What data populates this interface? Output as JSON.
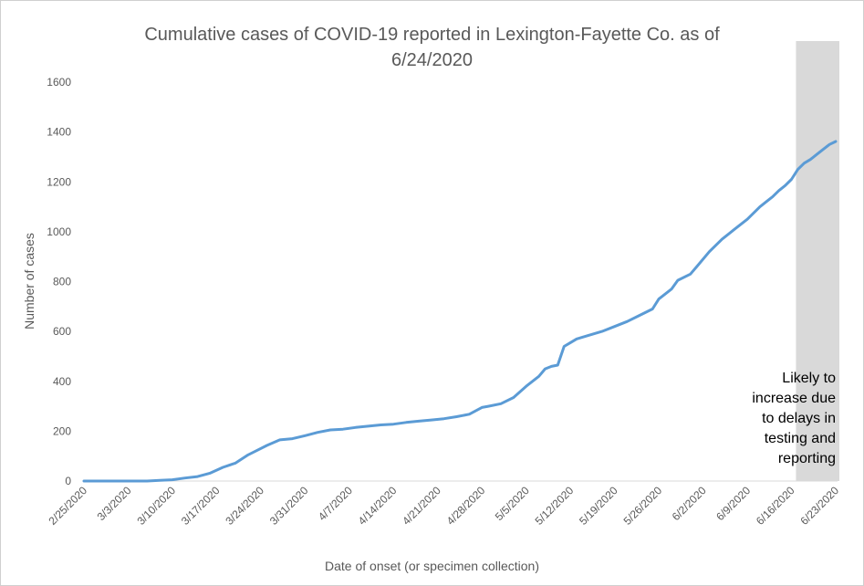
{
  "chart_data": {
    "type": "line",
    "title_line1": "Cumulative cases of COVID-19 reported in Lexington-Fayette Co.  as of",
    "title_line2": "6/24/2020",
    "xlabel": "Date of onset (or specimen collection)",
    "ylabel": "Number of cases",
    "ylim": [
      0,
      1600
    ],
    "yticks": [
      0,
      200,
      400,
      600,
      800,
      1000,
      1200,
      1400,
      1600
    ],
    "xlim": [
      "2/25/2020",
      "6/23/2020"
    ],
    "xticks": [
      "2/25/2020",
      "3/3/2020",
      "3/10/2020",
      "3/17/2020",
      "3/24/2020",
      "3/31/2020",
      "4/7/2020",
      "4/14/2020",
      "4/21/2020",
      "4/28/2020",
      "5/5/2020",
      "5/12/2020",
      "5/19/2020",
      "5/26/2020",
      "6/2/2020",
      "6/9/2020",
      "6/16/2020",
      "6/23/2020"
    ],
    "line_color": "#5B9BD5",
    "shaded_region": {
      "start": "6/17/2020",
      "end": "6/23/2020",
      "color": "#D9D9D9"
    },
    "annotation": "Likely to increase due to delays in testing and reporting",
    "annotation_lines": [
      "Likely to",
      "increase due",
      "to delays in",
      "testing and",
      "reporting"
    ],
    "grid": false,
    "series": [
      {
        "x": [
          "2/25/2020",
          "3/1/2020",
          "3/6/2020",
          "3/8/2020",
          "3/10/2020",
          "3/12/2020",
          "3/14/2020",
          "3/16/2020",
          "3/18/2020",
          "3/20/2020",
          "3/22/2020",
          "3/23/2020",
          "3/25/2020",
          "3/27/2020",
          "3/29/2020",
          "3/31/2020",
          "4/2/2020",
          "4/4/2020",
          "4/6/2020",
          "4/8/2020",
          "4/10/2020",
          "4/12/2020",
          "4/14/2020",
          "4/16/2020",
          "4/18/2020",
          "4/20/2020",
          "4/22/2020",
          "4/24/2020",
          "4/26/2020",
          "4/28/2020",
          "4/29/2020",
          "5/1/2020",
          "5/3/2020",
          "5/5/2020",
          "5/7/2020",
          "5/8/2020",
          "5/9/2020",
          "5/10/2020",
          "5/11/2020",
          "5/12/2020",
          "5/13/2020",
          "5/15/2020",
          "5/17/2020",
          "5/19/2020",
          "5/21/2020",
          "5/23/2020",
          "5/25/2020",
          "5/26/2020",
          "5/27/2020",
          "5/28/2020",
          "5/29/2020",
          "5/31/2020",
          "6/1/2020",
          "6/3/2020",
          "6/5/2020",
          "6/7/2020",
          "6/9/2020",
          "6/11/2020",
          "6/12/2020",
          "6/13/2020",
          "6/14/2020",
          "6/15/2020",
          "6/16/2020",
          "6/17/2020",
          "6/18/2020",
          "6/19/2020",
          "6/20/2020",
          "6/21/2020",
          "6/22/2020",
          "6/23/2020"
        ],
        "values": [
          0,
          0,
          0,
          3,
          5,
          12,
          18,
          32,
          55,
          72,
          105,
          118,
          143,
          165,
          170,
          182,
          195,
          205,
          208,
          215,
          220,
          225,
          228,
          235,
          240,
          245,
          250,
          258,
          268,
          295,
          300,
          310,
          335,
          380,
          420,
          450,
          460,
          465,
          540,
          555,
          570,
          585,
          600,
          620,
          640,
          665,
          690,
          730,
          750,
          770,
          805,
          830,
          860,
          920,
          970,
          1010,
          1050,
          1100,
          1120,
          1140,
          1165,
          1185,
          1210,
          1250,
          1275,
          1290,
          1310,
          1330,
          1350,
          1362
        ]
      }
    ]
  }
}
